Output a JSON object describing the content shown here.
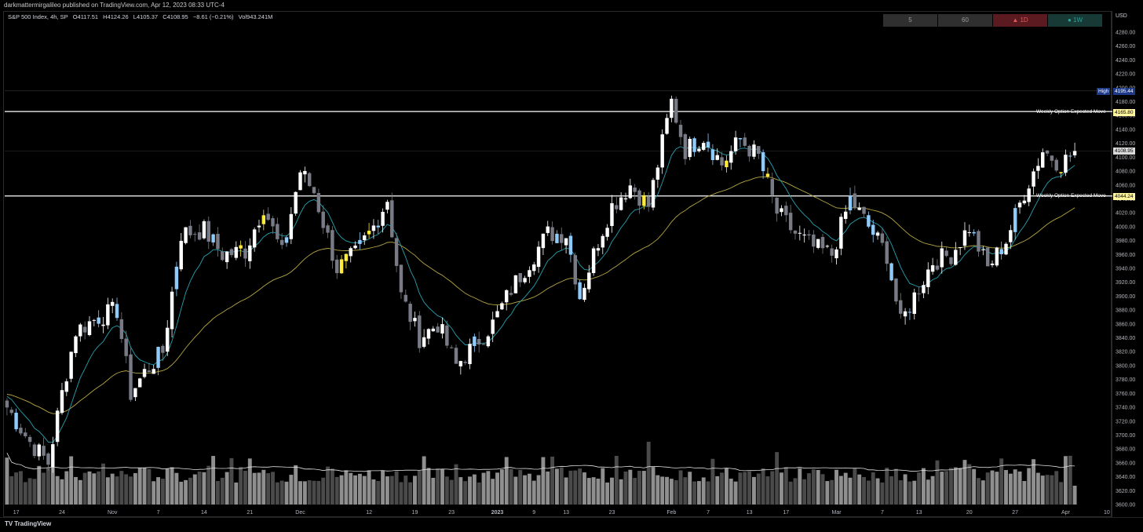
{
  "header": {
    "published": "darkmattermirgalileo published on TradingView.com, Apr 12, 2023 08:33 UTC-4"
  },
  "legend": {
    "symbol": "S&P 500 Index, 4h, SP",
    "open": "O4117.51",
    "high": "H4124.26",
    "low": "L4105.37",
    "close": "C4108.95",
    "change": "−8.61 (−0.21%)",
    "volume": "Vol943.241M"
  },
  "timeframes": [
    {
      "label": "5",
      "color": "#2f2f2f",
      "text": "#9a9a9a"
    },
    {
      "label": "60",
      "color": "#2f2f2f",
      "text": "#9a9a9a"
    },
    {
      "label": "▲ 1D",
      "color": "#5a1a1f",
      "text": "#e05a5a"
    },
    {
      "label": "● 1W",
      "color": "#173a36",
      "text": "#26a69a"
    }
  ],
  "axis": {
    "currency": "USD"
  },
  "branding": {
    "logo": "TradingView"
  },
  "annotations": {
    "high_label": "High",
    "high_value": "4195.44",
    "upper_label": "Weekly Option Expected Move",
    "upper_value": "4165.80",
    "lower_label": "Weekly Option Expected Move",
    "lower_value": "4044.24",
    "last_value": "4108.95"
  },
  "colors": {
    "background": "#000000",
    "candle_up": "#ffffff",
    "candle_down": "#787b86",
    "candle_blue": "#90caf9",
    "candle_yellow": "#ffeb3b",
    "ema_fast": "#26a0b0",
    "ema_slow": "#b5a642",
    "volume_ma": "#e0e0e0",
    "expected_move_line": "#ffffff",
    "high_tag": "#2962ff"
  },
  "chart_data": {
    "type": "candlestick",
    "title": "S&P 500 Index, 4h, SP",
    "ylim": [
      3590,
      4310
    ],
    "yticks": [
      3600,
      3620,
      3640,
      3660,
      3680,
      3700,
      3720,
      3740,
      3760,
      3780,
      3800,
      3820,
      3840,
      3860,
      3880,
      3900,
      3920,
      3940,
      3960,
      3980,
      4000,
      4020,
      4040,
      4060,
      4080,
      4100,
      4120,
      4140,
      4160,
      4180,
      4200,
      4220,
      4240,
      4260,
      4280
    ],
    "ytick_labels": [
      "3600.00",
      "3620.00",
      "3640.00",
      "3660.00",
      "3680.00",
      "3700.00",
      "3720.00",
      "3740.00",
      "3760.00",
      "3780.00",
      "3800.00",
      "3820.00",
      "3840.00",
      "3860.00",
      "3880.00",
      "3900.00",
      "3920.00",
      "3940.00",
      "3960.00",
      "3980.00",
      "4000.00",
      "4020.00",
      "4040.00",
      "4060.00",
      "4080.00",
      "4100.00",
      "4120.00",
      "4140.00",
      "4160.00",
      "4180.00",
      "4200.00",
      "4220.00",
      "4240.00",
      "4260.00",
      "4280.00"
    ],
    "xtick_labels": [
      "17",
      "24",
      "Nov",
      "7",
      "14",
      "21",
      "Dec",
      "12",
      "19",
      "23",
      "2023",
      "9",
      "13",
      "23",
      "Feb",
      "7",
      "13",
      "17",
      "Mar",
      "7",
      "13",
      "20",
      "27",
      "Apr",
      "10",
      "17"
    ],
    "xtick_bars": [
      2,
      12,
      23,
      33,
      43,
      53,
      64,
      79,
      89,
      97,
      107,
      115,
      122,
      132,
      145,
      153,
      162,
      170,
      181,
      191,
      199,
      210,
      220,
      231,
      240,
      250
    ],
    "bar_count": 234,
    "anchors": [
      {
        "bar": 0,
        "price": 3740
      },
      {
        "bar": 5,
        "price": 3690
      },
      {
        "bar": 9,
        "price": 3660
      },
      {
        "bar": 12,
        "price": 3760
      },
      {
        "bar": 15,
        "price": 3850
      },
      {
        "bar": 20,
        "price": 3870
      },
      {
        "bar": 24,
        "price": 3880
      },
      {
        "bar": 27,
        "price": 3760
      },
      {
        "bar": 30,
        "price": 3790
      },
      {
        "bar": 34,
        "price": 3820
      },
      {
        "bar": 38,
        "price": 3990
      },
      {
        "bar": 43,
        "price": 3995
      },
      {
        "bar": 47,
        "price": 3960
      },
      {
        "bar": 52,
        "price": 3965
      },
      {
        "bar": 56,
        "price": 4030
      },
      {
        "bar": 60,
        "price": 3960
      },
      {
        "bar": 64,
        "price": 4080
      },
      {
        "bar": 67,
        "price": 4050
      },
      {
        "bar": 72,
        "price": 3940
      },
      {
        "bar": 76,
        "price": 3960
      },
      {
        "bar": 80,
        "price": 4000
      },
      {
        "bar": 83,
        "price": 4040
      },
      {
        "bar": 86,
        "price": 3900
      },
      {
        "bar": 90,
        "price": 3840
      },
      {
        "bar": 94,
        "price": 3860
      },
      {
        "bar": 98,
        "price": 3800
      },
      {
        "bar": 102,
        "price": 3830
      },
      {
        "bar": 106,
        "price": 3860
      },
      {
        "bar": 110,
        "price": 3910
      },
      {
        "bar": 114,
        "price": 3950
      },
      {
        "bar": 118,
        "price": 3990
      },
      {
        "bar": 122,
        "price": 3990
      },
      {
        "bar": 125,
        "price": 3900
      },
      {
        "bar": 129,
        "price": 3980
      },
      {
        "bar": 132,
        "price": 4030
      },
      {
        "bar": 136,
        "price": 4060
      },
      {
        "bar": 140,
        "price": 4030
      },
      {
        "bar": 145,
        "price": 4180
      },
      {
        "bar": 148,
        "price": 4110
      },
      {
        "bar": 152,
        "price": 4130
      },
      {
        "bar": 156,
        "price": 4090
      },
      {
        "bar": 160,
        "price": 4125
      },
      {
        "bar": 164,
        "price": 4100
      },
      {
        "bar": 168,
        "price": 4020
      },
      {
        "bar": 172,
        "price": 3990
      },
      {
        "bar": 176,
        "price": 3970
      },
      {
        "bar": 180,
        "price": 3960
      },
      {
        "bar": 184,
        "price": 4040
      },
      {
        "bar": 188,
        "price": 4000
      },
      {
        "bar": 192,
        "price": 3960
      },
      {
        "bar": 195,
        "price": 3860
      },
      {
        "bar": 198,
        "price": 3900
      },
      {
        "bar": 202,
        "price": 3950
      },
      {
        "bar": 206,
        "price": 3960
      },
      {
        "bar": 210,
        "price": 4000
      },
      {
        "bar": 214,
        "price": 3940
      },
      {
        "bar": 218,
        "price": 3980
      },
      {
        "bar": 222,
        "price": 4050
      },
      {
        "bar": 226,
        "price": 4110
      },
      {
        "bar": 230,
        "price": 4090
      },
      {
        "bar": 233,
        "price": 4109
      }
    ],
    "last_candle": {
      "open": 4117.51,
      "high": 4124.26,
      "low": 4105.37,
      "close": 4108.95
    },
    "high": 4195.44,
    "expected_move_upper": 4165.8,
    "expected_move_lower": 4044.24,
    "volume_last": 943.241,
    "volume_unit": "M",
    "indicators": [
      "EMA fast",
      "EMA slow",
      "Volume MA"
    ]
  }
}
